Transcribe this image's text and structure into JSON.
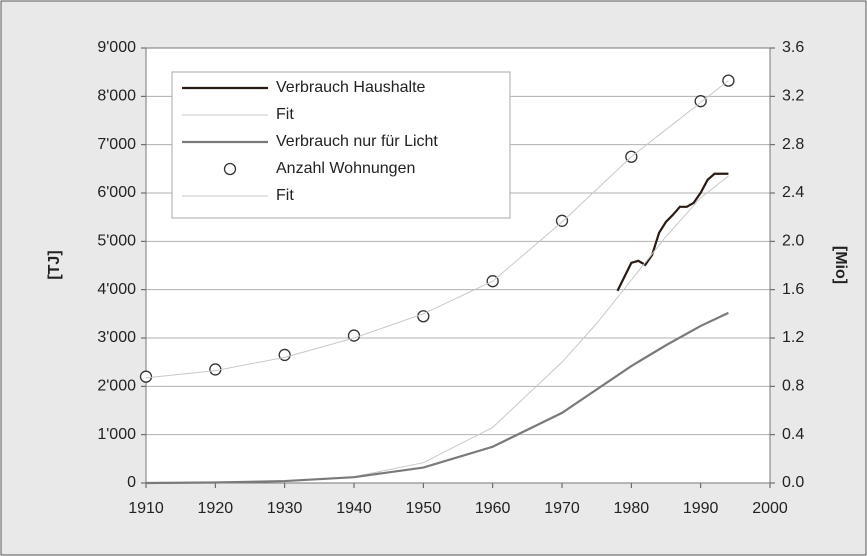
{
  "chart_data": {
    "type": "line",
    "xlim": [
      1910,
      2000
    ],
    "xticks": [
      1910,
      1920,
      1930,
      1940,
      1950,
      1960,
      1970,
      1980,
      1990,
      2000
    ],
    "ylim": [
      0,
      9000
    ],
    "yticks": [
      {
        "value": 0,
        "label": "0"
      },
      {
        "value": 1000,
        "label": "1'000"
      },
      {
        "value": 2000,
        "label": "2'000"
      },
      {
        "value": 3000,
        "label": "3'000"
      },
      {
        "value": 4000,
        "label": "4'000"
      },
      {
        "value": 5000,
        "label": "5'000"
      },
      {
        "value": 6000,
        "label": "6'000"
      },
      {
        "value": 7000,
        "label": "7'000"
      },
      {
        "value": 8000,
        "label": "8'000"
      },
      {
        "value": 9000,
        "label": "9'000"
      }
    ],
    "y2lim": [
      0,
      3.6
    ],
    "y2ticks": [
      {
        "value": 0,
        "label": "0.0"
      },
      0.4,
      0.8,
      1.2,
      1.6,
      {
        "value": 2,
        "label": "2.0"
      },
      2.4,
      2.8,
      3.2,
      3.6
    ],
    "ylabel": "[TJ]",
    "y2label": "[Mio]",
    "series": [
      {
        "name": "Verbrauch Haushalte",
        "color": "#2a1a14",
        "style": "line",
        "x": [
          1978,
          1980,
          1981,
          1982,
          1983,
          1984,
          1985,
          1986,
          1987,
          1988,
          1989,
          1990,
          1991,
          1992,
          1994
        ],
        "values": [
          3975,
          4555,
          4596,
          4513,
          4720,
          5176,
          5404,
          5549,
          5714,
          5714,
          5797,
          6004,
          6273,
          6398,
          6398
        ]
      },
      {
        "name": "Fit",
        "color": "#c8c8c8",
        "style": "line",
        "x": [
          1910,
          1920,
          1930,
          1940,
          1950,
          1960,
          1970,
          1975,
          1980,
          1985,
          1990,
          1994
        ],
        "values": [
          0,
          10,
          40,
          130,
          420,
          1150,
          2500,
          3300,
          4200,
          5100,
          5900,
          6350
        ]
      },
      {
        "name": "Verbrauch nur für Licht",
        "color": "#7a7a7a",
        "style": "line",
        "x": [
          1910,
          1920,
          1930,
          1940,
          1950,
          1960,
          1970,
          1980,
          1985,
          1990,
          1994
        ],
        "values": [
          0,
          10,
          40,
          120,
          320,
          750,
          1450,
          2420,
          2850,
          3250,
          3520
        ]
      },
      {
        "name": "Anzahl Wohnungen",
        "color": "#333333",
        "style": "markers",
        "axis": "y2",
        "x": [
          1910,
          1920,
          1930,
          1940,
          1950,
          1960,
          1970,
          1980,
          1990,
          1994
        ],
        "values": [
          0.88,
          0.94,
          1.06,
          1.22,
          1.38,
          1.67,
          2.17,
          2.7,
          3.16,
          3.33
        ]
      },
      {
        "name": "Fit",
        "color": "#c8c8c8",
        "style": "line",
        "axis": "y2",
        "x": [
          1910,
          1920,
          1930,
          1940,
          1950,
          1960,
          1970,
          1980,
          1990,
          1994
        ],
        "values": [
          0.87,
          0.93,
          1.04,
          1.2,
          1.4,
          1.67,
          2.16,
          2.7,
          3.15,
          3.33
        ]
      }
    ],
    "legend": "upper left"
  }
}
